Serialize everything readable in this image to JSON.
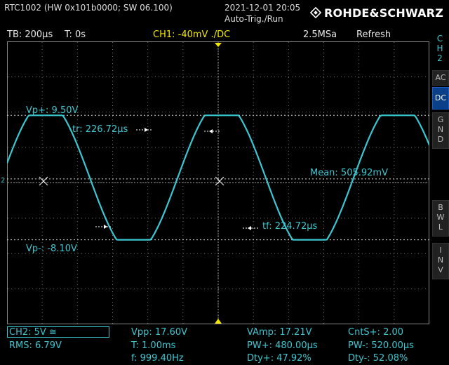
{
  "header": {
    "device": "RTC1002 (HW 0x101b0000; SW 06.100)",
    "datetime": "2021-12-01 20:05",
    "trigger_mode": "Auto-Trig./Run",
    "brand": "ROHDE&SCHWARZ"
  },
  "status": {
    "timebase": "TB: 200µs",
    "time_offset": "T: 0s",
    "channel_setting": "CH1: -40mV ./DC",
    "sample_rate": "2.5MSa",
    "mode": "Refresh"
  },
  "sidebar": {
    "channel": [
      "C",
      "H",
      "2"
    ],
    "buttons": [
      {
        "label": "AC",
        "lines": [
          "AC"
        ],
        "active": false
      },
      {
        "label": "DC",
        "lines": [
          "DC"
        ],
        "active": true
      },
      {
        "label": "GND",
        "lines": [
          "G",
          "N",
          "D"
        ],
        "active": false
      },
      {
        "label": "BWL",
        "lines": [
          "B",
          "W",
          "L"
        ],
        "active": false
      },
      {
        "label": "INV",
        "lines": [
          "I",
          "N",
          "V"
        ],
        "active": false
      }
    ]
  },
  "cursors": {
    "vp_plus": "Vp+: 9.50V",
    "vp_minus": "Vp-: -8.10V",
    "rise_time": "tr: 226.72µs",
    "fall_time": "tf: 224.72µs",
    "mean": "Mean: 505.92mV",
    "channel_marker": "2"
  },
  "measurements": {
    "ch2_scale": "CH2: 5V ≅",
    "rms": "RMS: 6.79V",
    "vpp": "Vpp: 17.60V",
    "period": "T: 1.00ms",
    "frequency": "f: 999.40Hz",
    "vamp": "VAmp: 17.21V",
    "pw_plus": "PW+: 480.00µs",
    "dty_plus": "Dty+: 47.92%",
    "cnts_plus": "CntS+: 2.00",
    "pw_minus": "PW-: 520.00µs",
    "dty_minus": "Dty-: 52.08%"
  },
  "colors": {
    "trace": "#3bc7d1",
    "accent_yellow": "#f2e600",
    "grid": "#707070",
    "active_button": "#0b3f88"
  },
  "chart_data": {
    "type": "line",
    "x": [
      0,
      0.2,
      0.4,
      0.6,
      0.8,
      1.0,
      1.2,
      1.4,
      1.6,
      1.8,
      2.0
    ],
    "series": [
      {
        "values": [
          9.5,
          -8.1,
          9.5,
          -8.1,
          9.5,
          -8.1,
          9.5,
          -8.1,
          9.5,
          -8.1,
          9.5
        ]
      }
    ],
    "grid": true,
    "vp_plus": 9.5,
    "vp_minus": -8.1,
    "mean": 0.50592
  }
}
